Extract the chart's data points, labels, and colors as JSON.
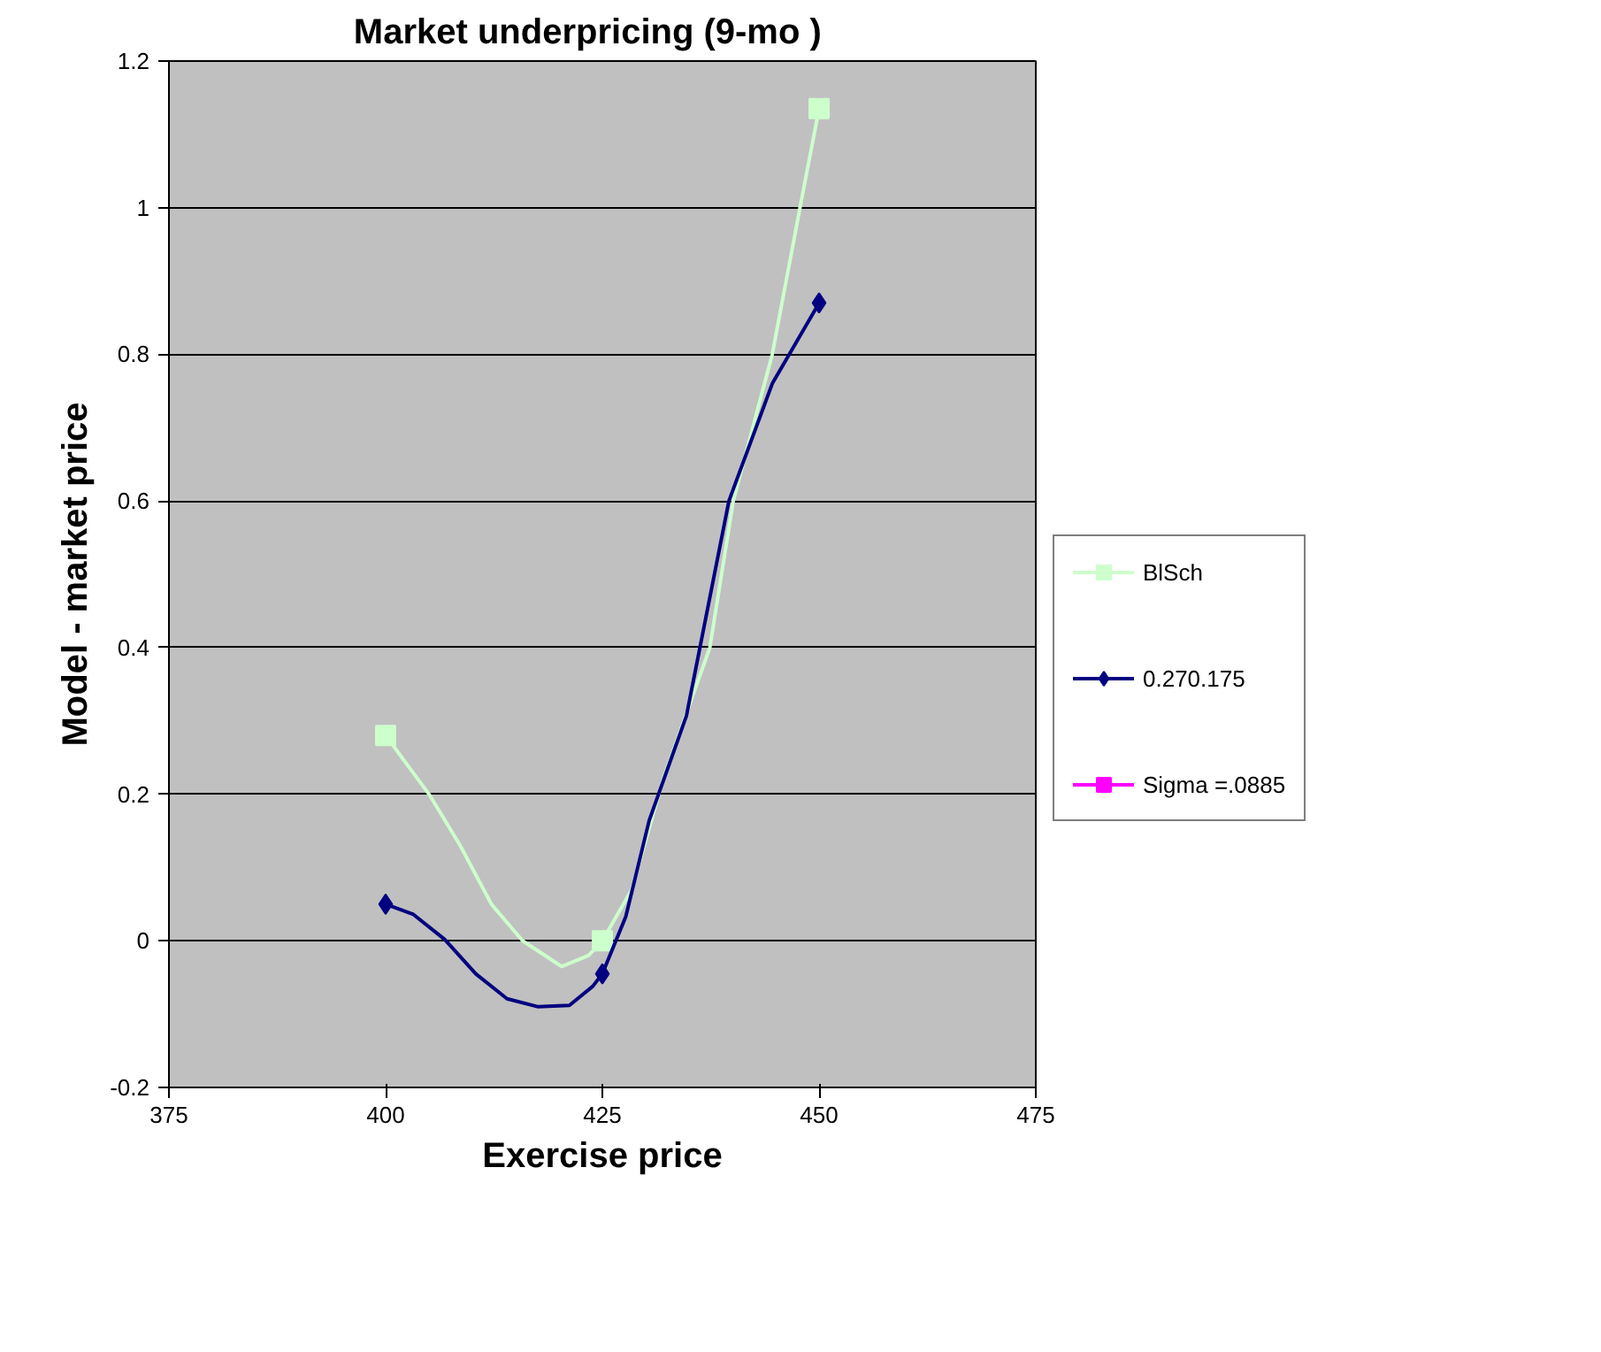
{
  "chart_data": {
    "type": "line",
    "title": "Market underpricing    (9-mo )",
    "xlabel": "Exercise price",
    "ylabel": "Model - market price",
    "series": [
      {
        "name": "BlSch",
        "color": "#ccffcc",
        "x": [
          400,
          405,
          408.6,
          412.2,
          415.8,
          420.3,
          423.4,
          425,
          428.4,
          432,
          437.4,
          440.1,
          444.6,
          447.8,
          450
        ],
        "values": [
          0.28,
          0.2,
          0.13,
          0.05,
          0,
          -0.035,
          -0.02,
          0,
          0.07,
          0.22,
          0.4,
          0.6,
          0.8,
          1.0,
          1.135
        ],
        "marker": "none"
      },
      {
        "type": "scatter",
        "color": "#ccffcc",
        "x": [
          400,
          425,
          450
        ],
        "values": [
          0.28,
          0,
          1.135
        ],
        "marker": "square"
      },
      {
        "name": "0.270.175",
        "color": "#000080",
        "x": [
          400,
          403.2,
          406.8,
          410.4,
          414,
          417.6,
          421.2,
          423.9,
          425,
          427.7,
          430.4,
          434.7,
          439.6,
          444.6,
          450
        ],
        "values": [
          0.05,
          0.036,
          0.002,
          -0.045,
          -0.079,
          -0.09,
          -0.088,
          -0.062,
          -0.045,
          0.033,
          0.164,
          0.307,
          0.6,
          0.76,
          0.87
        ],
        "marker": "none"
      },
      {
        "type": "scatter",
        "color": "#000080",
        "x": [
          400,
          425,
          450
        ],
        "values": [
          0.05,
          -0.045,
          0.87
        ],
        "marker": "diamond"
      },
      {
        "name": "Sigma =.0885",
        "color": "#ff00ff",
        "values": [
          null
        ],
        "marker": "square"
      }
    ],
    "xlim": [
      375,
      475
    ],
    "xticks": [
      375,
      400,
      425,
      450,
      475
    ],
    "ylim": [
      -0.2,
      1.2
    ],
    "yticks": [
      -0.2,
      0,
      0.2,
      0.4,
      0.6,
      0.8,
      1,
      1.2
    ],
    "grid": "y",
    "legend": "right"
  }
}
